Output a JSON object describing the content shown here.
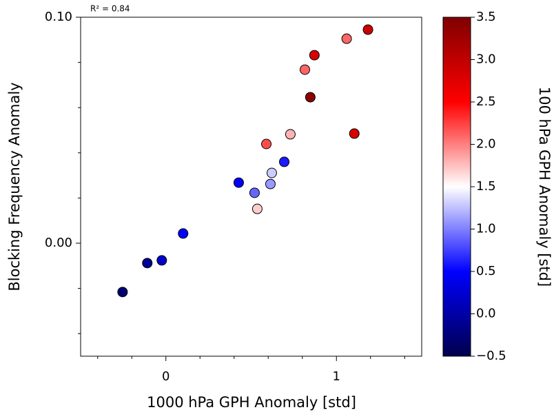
{
  "chart_data": {
    "type": "scatter",
    "annotation": "R² = 0.84",
    "xlabel": "1000 hPa GPH Anomaly [std]",
    "ylabel": "Blocking Frequency Anomaly",
    "colorbar_label": "100 hPa GPH Anomaly [std]",
    "colormap": "seismic",
    "xlim": [
      -0.5,
      1.5
    ],
    "xticks": [
      0,
      1
    ],
    "xminorticks": [
      -0.4,
      -0.2,
      0.2,
      0.4,
      0.6,
      0.8,
      1.2,
      1.4
    ],
    "ylim": [
      -0.05,
      0.1
    ],
    "yticks": [
      {
        "value": 0,
        "label": "0.00"
      },
      {
        "value": 0.1,
        "label": "0.10"
      }
    ],
    "yminorticks": [
      -0.04,
      -0.02,
      0.02,
      0.04,
      0.06,
      0.08
    ],
    "clim": [
      -0.5,
      3.5
    ],
    "cticks": [
      {
        "value": -0.5,
        "label": "−0.5"
      },
      {
        "value": 0,
        "label": "0.0"
      },
      0.5,
      {
        "value": 1,
        "label": "1.0"
      },
      1.5,
      {
        "value": 2,
        "label": "2.0"
      },
      2.5,
      {
        "value": 3,
        "label": "3.0"
      },
      3.5
    ],
    "series": [
      {
        "x": [
          -0.254,
          -0.109,
          -0.024,
          0.101,
          0.427,
          0.52,
          0.536,
          0.613,
          0.621,
          0.694,
          0.589,
          0.73,
          0.815,
          0.847,
          0.871,
          1.06,
          1.105,
          1.185
        ],
        "y": [
          -0.0216,
          -0.0088,
          -0.0076,
          0.0043,
          0.0268,
          0.0223,
          0.0152,
          0.0262,
          0.0311,
          0.036,
          0.0439,
          0.0482,
          0.0768,
          0.0646,
          0.0832,
          0.0905,
          0.0485,
          0.0945
        ],
        "color_values": [
          -0.3,
          -0.1,
          0.2,
          0.5,
          0.5,
          0.9,
          1.7,
          1.1,
          1.3,
          0.6,
          2.2,
          1.8,
          2.1,
          3.4,
          2.8,
          2.1,
          2.8,
          2.9
        ]
      }
    ]
  }
}
